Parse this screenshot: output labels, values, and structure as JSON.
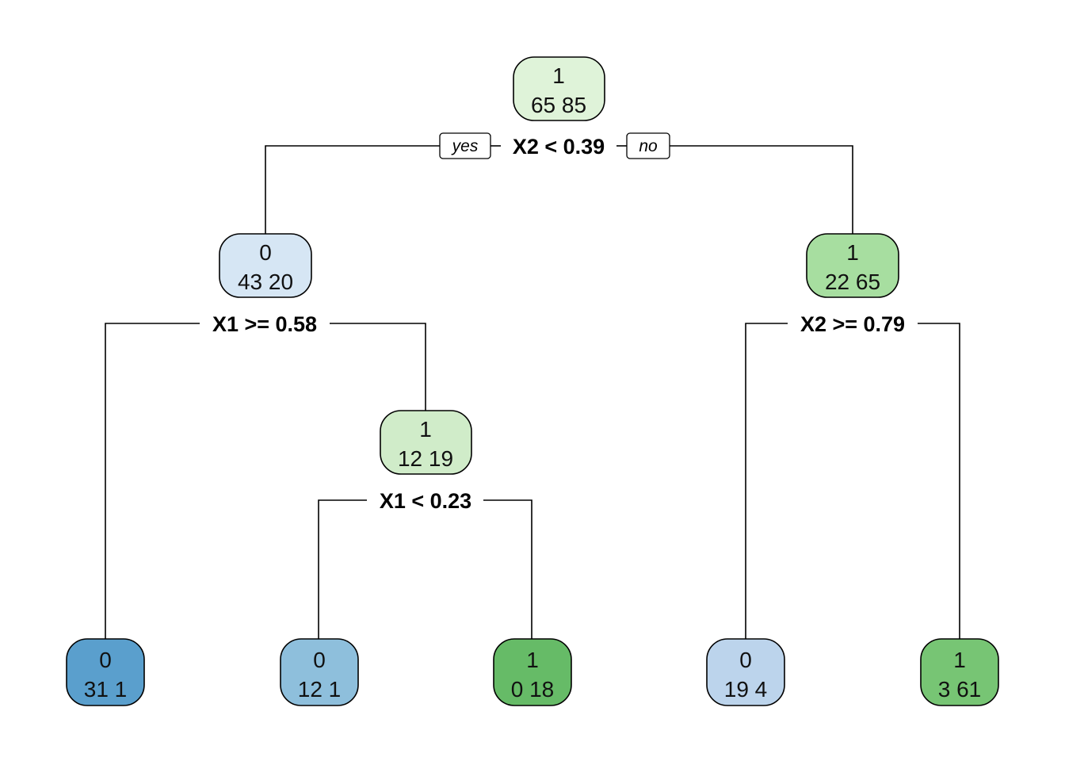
{
  "tree": {
    "branch_labels": {
      "yes": "yes",
      "no": "no"
    },
    "nodes": [
      {
        "id": "n1",
        "class": "1",
        "counts": "65  85",
        "color": "#dff3d9"
      },
      {
        "id": "n2",
        "class": "0",
        "counts": "43  20",
        "color": "#d6e6f4"
      },
      {
        "id": "n3",
        "class": "1",
        "counts": "22  65",
        "color": "#a7dea0"
      },
      {
        "id": "n4",
        "class": "0",
        "counts": "31  1",
        "color": "#5a9fcd"
      },
      {
        "id": "n5",
        "class": "1",
        "counts": "12  19",
        "color": "#d0ecc9"
      },
      {
        "id": "n6",
        "class": "0",
        "counts": "12  1",
        "color": "#8ebfdc"
      },
      {
        "id": "n7",
        "class": "1",
        "counts": "0  18",
        "color": "#66bb67"
      },
      {
        "id": "n8",
        "class": "0",
        "counts": "19  4",
        "color": "#bcd4ec"
      },
      {
        "id": "n9",
        "class": "1",
        "counts": "3  61",
        "color": "#77c574"
      }
    ],
    "splits": [
      {
        "id": "s1",
        "node": "n1",
        "label": "X2 < 0.39"
      },
      {
        "id": "s2",
        "node": "n2",
        "label": "X1 >= 0.58"
      },
      {
        "id": "s3",
        "node": "n3",
        "label": "X2 >= 0.79"
      },
      {
        "id": "s4",
        "node": "n5",
        "label": "X1 < 0.23"
      }
    ]
  }
}
